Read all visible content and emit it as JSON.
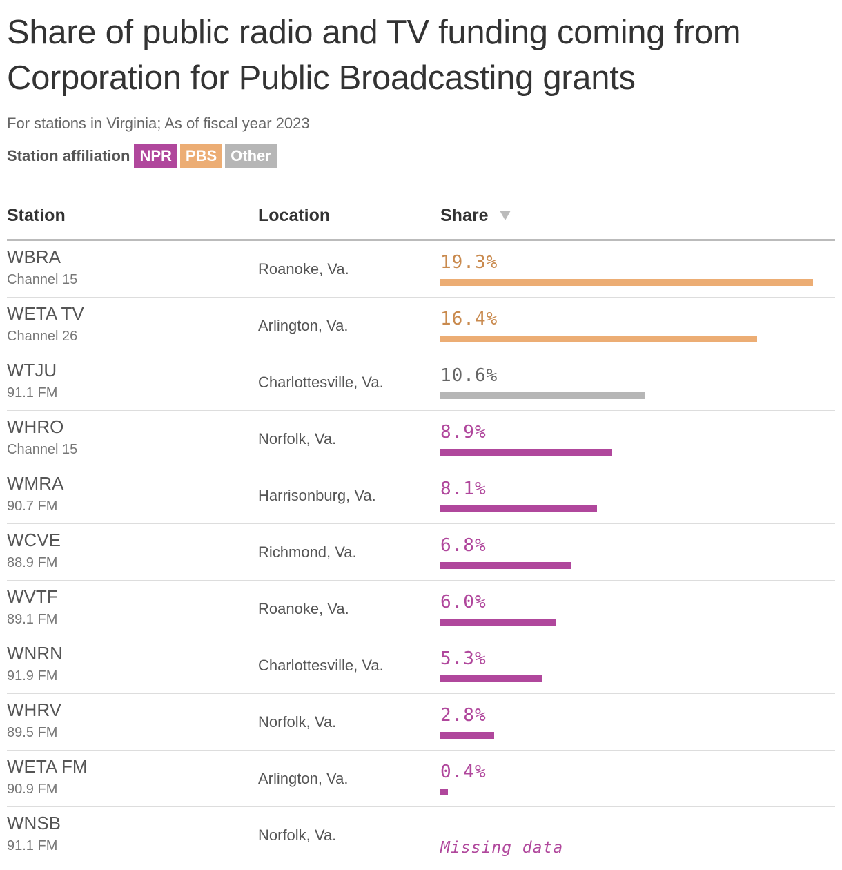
{
  "title": "Share of public radio and TV funding coming from Corporation for Public Broadcasting grants",
  "subtitle": "For stations in Virginia; As of fiscal year 2023",
  "legend": {
    "label": "Station affiliation",
    "items": [
      {
        "label": "NPR",
        "color": "#b0479c"
      },
      {
        "label": "PBS",
        "color": "#ecad74"
      },
      {
        "label": "Other",
        "color": "#b6b6b6"
      }
    ]
  },
  "colors": {
    "NPR": "#b0479c",
    "PBS": "#ecad74",
    "Other": "#b6b6b6",
    "PBS_text": "#c98a4e",
    "Other_text": "#666666"
  },
  "columns": {
    "station": "Station",
    "location": "Location",
    "share": "Share"
  },
  "sort_icon": "sort-down-triangle-icon",
  "chart_data": {
    "type": "table",
    "value_domain": [
      0,
      19.3
    ],
    "rows": [
      {
        "station": "WBRA",
        "sub": "Channel 15",
        "location": "Roanoke, Va.",
        "share": 19.3,
        "share_label": "19.3%",
        "affiliation": "PBS"
      },
      {
        "station": "WETA TV",
        "sub": "Channel 26",
        "location": "Arlington, Va.",
        "share": 16.4,
        "share_label": "16.4%",
        "affiliation": "PBS"
      },
      {
        "station": "WTJU",
        "sub": "91.1 FM",
        "location": "Charlottesville, Va.",
        "share": 10.6,
        "share_label": "10.6%",
        "affiliation": "Other"
      },
      {
        "station": "WHRO",
        "sub": "Channel 15",
        "location": "Norfolk, Va.",
        "share": 8.9,
        "share_label": "8.9%",
        "affiliation": "NPR"
      },
      {
        "station": "WMRA",
        "sub": "90.7 FM",
        "location": "Harrisonburg, Va.",
        "share": 8.1,
        "share_label": "8.1%",
        "affiliation": "NPR"
      },
      {
        "station": "WCVE",
        "sub": "88.9 FM",
        "location": "Richmond, Va.",
        "share": 6.8,
        "share_label": "6.8%",
        "affiliation": "NPR"
      },
      {
        "station": "WVTF",
        "sub": "89.1 FM",
        "location": "Roanoke, Va.",
        "share": 6.0,
        "share_label": "6.0%",
        "affiliation": "NPR"
      },
      {
        "station": "WNRN",
        "sub": "91.9 FM",
        "location": "Charlottesville, Va.",
        "share": 5.3,
        "share_label": "5.3%",
        "affiliation": "NPR"
      },
      {
        "station": "WHRV",
        "sub": "89.5 FM",
        "location": "Norfolk, Va.",
        "share": 2.8,
        "share_label": "2.8%",
        "affiliation": "NPR"
      },
      {
        "station": "WETA FM",
        "sub": "90.9 FM",
        "location": "Arlington, Va.",
        "share": 0.4,
        "share_label": "0.4%",
        "affiliation": "NPR"
      },
      {
        "station": "WNSB",
        "sub": "91.1 FM",
        "location": "Norfolk, Va.",
        "share": null,
        "share_label": "Missing data",
        "affiliation": "NPR"
      }
    ]
  }
}
